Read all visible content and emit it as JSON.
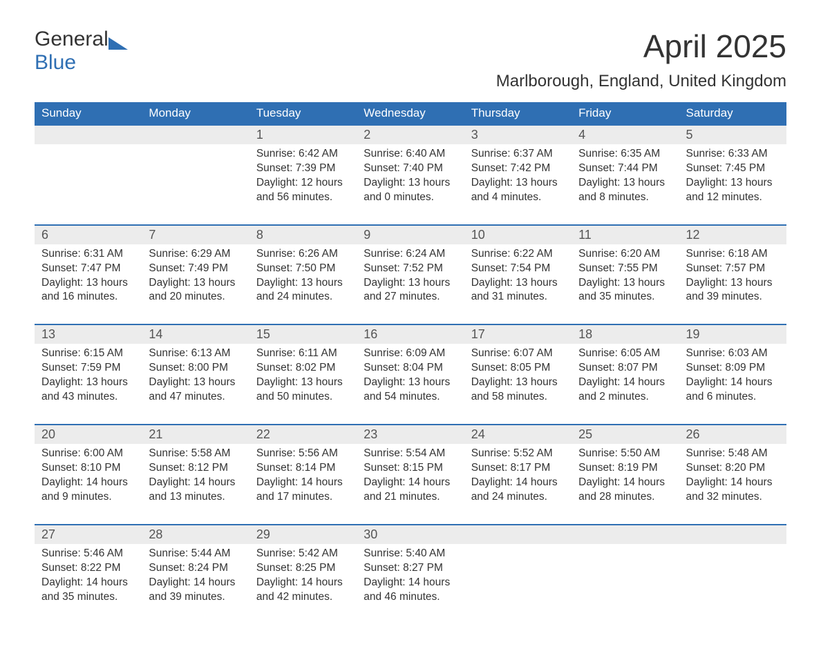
{
  "logo": {
    "word1": "General",
    "word2": "Blue"
  },
  "title": "April 2025",
  "location": "Marlborough, England, United Kingdom",
  "colors": {
    "header_bg": "#2f6fb3",
    "header_text": "#ffffff",
    "daynum_bg": "#ececec",
    "row_border": "#2f6fb3",
    "body_text": "#333333",
    "logo_accent": "#2f6fb3"
  },
  "day_headers": [
    "Sunday",
    "Monday",
    "Tuesday",
    "Wednesday",
    "Thursday",
    "Friday",
    "Saturday"
  ],
  "weeks": [
    {
      "nums": [
        "",
        "",
        "1",
        "2",
        "3",
        "4",
        "5"
      ],
      "cells": [
        "",
        "",
        "Sunrise: 6:42 AM\nSunset: 7:39 PM\nDaylight: 12 hours and 56 minutes.",
        "Sunrise: 6:40 AM\nSunset: 7:40 PM\nDaylight: 13 hours and 0 minutes.",
        "Sunrise: 6:37 AM\nSunset: 7:42 PM\nDaylight: 13 hours and 4 minutes.",
        "Sunrise: 6:35 AM\nSunset: 7:44 PM\nDaylight: 13 hours and 8 minutes.",
        "Sunrise: 6:33 AM\nSunset: 7:45 PM\nDaylight: 13 hours and 12 minutes."
      ]
    },
    {
      "nums": [
        "6",
        "7",
        "8",
        "9",
        "10",
        "11",
        "12"
      ],
      "cells": [
        "Sunrise: 6:31 AM\nSunset: 7:47 PM\nDaylight: 13 hours and 16 minutes.",
        "Sunrise: 6:29 AM\nSunset: 7:49 PM\nDaylight: 13 hours and 20 minutes.",
        "Sunrise: 6:26 AM\nSunset: 7:50 PM\nDaylight: 13 hours and 24 minutes.",
        "Sunrise: 6:24 AM\nSunset: 7:52 PM\nDaylight: 13 hours and 27 minutes.",
        "Sunrise: 6:22 AM\nSunset: 7:54 PM\nDaylight: 13 hours and 31 minutes.",
        "Sunrise: 6:20 AM\nSunset: 7:55 PM\nDaylight: 13 hours and 35 minutes.",
        "Sunrise: 6:18 AM\nSunset: 7:57 PM\nDaylight: 13 hours and 39 minutes."
      ]
    },
    {
      "nums": [
        "13",
        "14",
        "15",
        "16",
        "17",
        "18",
        "19"
      ],
      "cells": [
        "Sunrise: 6:15 AM\nSunset: 7:59 PM\nDaylight: 13 hours and 43 minutes.",
        "Sunrise: 6:13 AM\nSunset: 8:00 PM\nDaylight: 13 hours and 47 minutes.",
        "Sunrise: 6:11 AM\nSunset: 8:02 PM\nDaylight: 13 hours and 50 minutes.",
        "Sunrise: 6:09 AM\nSunset: 8:04 PM\nDaylight: 13 hours and 54 minutes.",
        "Sunrise: 6:07 AM\nSunset: 8:05 PM\nDaylight: 13 hours and 58 minutes.",
        "Sunrise: 6:05 AM\nSunset: 8:07 PM\nDaylight: 14 hours and 2 minutes.",
        "Sunrise: 6:03 AM\nSunset: 8:09 PM\nDaylight: 14 hours and 6 minutes."
      ]
    },
    {
      "nums": [
        "20",
        "21",
        "22",
        "23",
        "24",
        "25",
        "26"
      ],
      "cells": [
        "Sunrise: 6:00 AM\nSunset: 8:10 PM\nDaylight: 14 hours and 9 minutes.",
        "Sunrise: 5:58 AM\nSunset: 8:12 PM\nDaylight: 14 hours and 13 minutes.",
        "Sunrise: 5:56 AM\nSunset: 8:14 PM\nDaylight: 14 hours and 17 minutes.",
        "Sunrise: 5:54 AM\nSunset: 8:15 PM\nDaylight: 14 hours and 21 minutes.",
        "Sunrise: 5:52 AM\nSunset: 8:17 PM\nDaylight: 14 hours and 24 minutes.",
        "Sunrise: 5:50 AM\nSunset: 8:19 PM\nDaylight: 14 hours and 28 minutes.",
        "Sunrise: 5:48 AM\nSunset: 8:20 PM\nDaylight: 14 hours and 32 minutes."
      ]
    },
    {
      "nums": [
        "27",
        "28",
        "29",
        "30",
        "",
        "",
        ""
      ],
      "cells": [
        "Sunrise: 5:46 AM\nSunset: 8:22 PM\nDaylight: 14 hours and 35 minutes.",
        "Sunrise: 5:44 AM\nSunset: 8:24 PM\nDaylight: 14 hours and 39 minutes.",
        "Sunrise: 5:42 AM\nSunset: 8:25 PM\nDaylight: 14 hours and 42 minutes.",
        "Sunrise: 5:40 AM\nSunset: 8:27 PM\nDaylight: 14 hours and 46 minutes.",
        "",
        "",
        ""
      ]
    }
  ]
}
